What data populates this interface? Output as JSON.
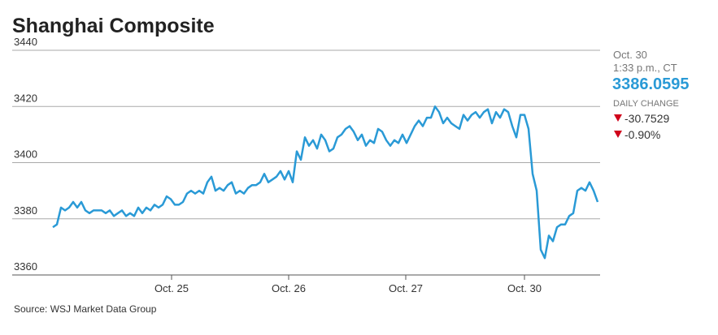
{
  "chart_data": {
    "type": "line",
    "title": "Shanghai Composite",
    "source": "Source: WSJ Market Data Group",
    "color": "#2a9ad6",
    "grid": true,
    "values": [
      3377,
      3378,
      3384,
      3383,
      3384,
      3386,
      3384,
      3386,
      3383,
      3382,
      3383,
      3383,
      3383,
      3382,
      3383,
      3381,
      3382,
      3383,
      3381,
      3382,
      3381,
      3384,
      3382,
      3384,
      3383,
      3385,
      3384,
      3385,
      3388,
      3387,
      3385,
      3385,
      3386,
      3389,
      3390,
      3389,
      3390,
      3389,
      3393,
      3395,
      3390,
      3391,
      3390,
      3392,
      3393,
      3389,
      3390,
      3389,
      3391,
      3392,
      3392,
      3393,
      3396,
      3393,
      3394,
      3395,
      3397,
      3394,
      3397,
      3393,
      3404,
      3401,
      3409,
      3406,
      3408,
      3405,
      3410,
      3408,
      3404,
      3405,
      3409,
      3410,
      3412,
      3413,
      3411,
      3408,
      3410,
      3406,
      3408,
      3407,
      3412,
      3411,
      3408,
      3406,
      3408,
      3407,
      3410,
      3407,
      3410,
      3413,
      3415,
      3413,
      3416,
      3416,
      3420,
      3418,
      3414,
      3416,
      3414,
      3413,
      3412,
      3417,
      3415,
      3417,
      3418,
      3416,
      3418,
      3419,
      3414,
      3418,
      3416,
      3419,
      3418,
      3413,
      3409,
      3417,
      3417,
      3412,
      3396,
      3390,
      3369,
      3366,
      3374,
      3372,
      3377,
      3378,
      3378,
      3381,
      3382,
      3390,
      3391,
      3390,
      3393,
      3390,
      3386
    ],
    "xlim": [
      0,
      134
    ],
    "xticks": [
      {
        "value": 29.2,
        "label": "Oct. 25"
      },
      {
        "value": 58,
        "label": "Oct. 26"
      },
      {
        "value": 86.8,
        "label": "Oct. 27"
      },
      {
        "value": 116,
        "label": "Oct. 30"
      }
    ],
    "ylim": [
      3360,
      3440
    ],
    "yticks": [
      3360,
      3380,
      3400,
      3420,
      3440
    ],
    "quote": {
      "date": "Oct. 30",
      "time": "1:33 p.m., CT",
      "last": "3386.0595",
      "change_label": "DAILY CHANGE",
      "change": "-30.7529",
      "change_pct": "-0.90%"
    }
  }
}
